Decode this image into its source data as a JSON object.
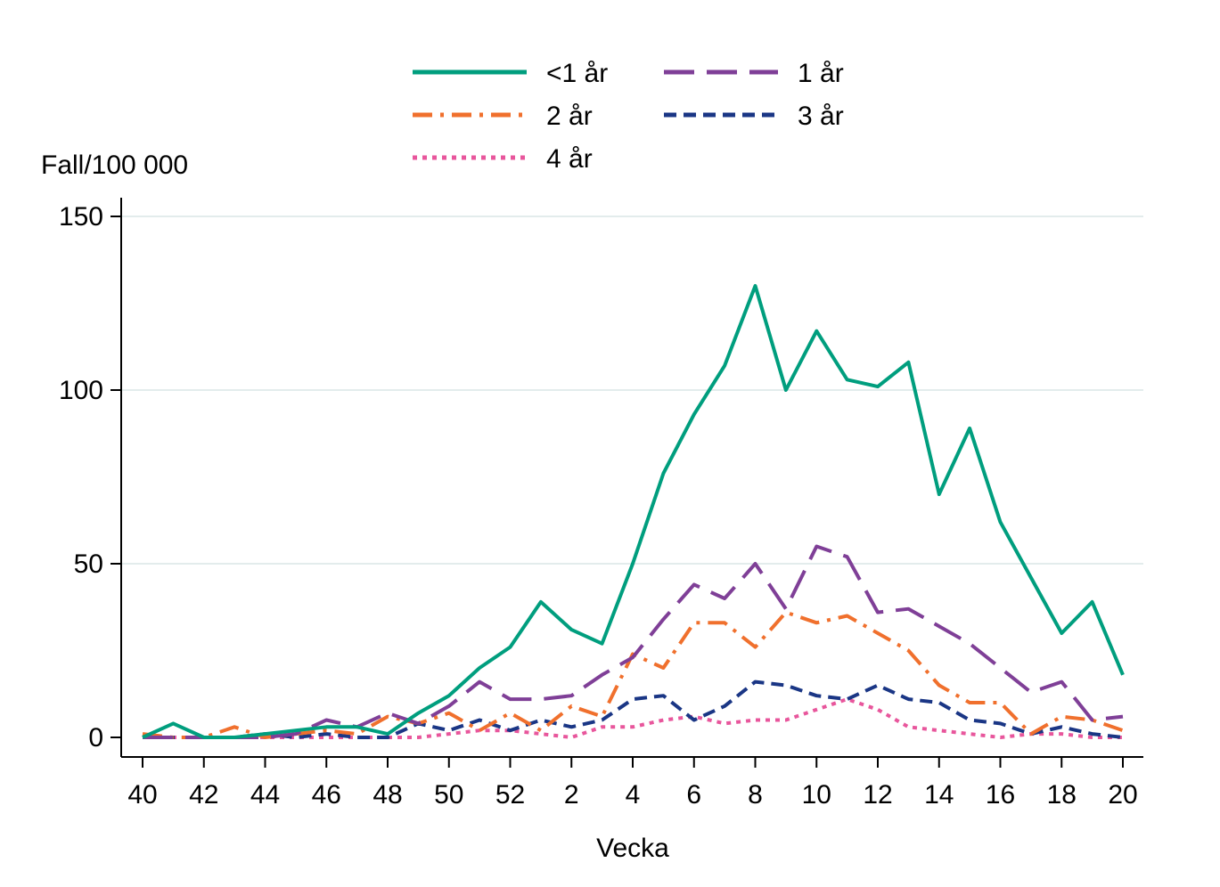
{
  "chart_data": {
    "type": "line",
    "title": "",
    "xlabel": "Vecka",
    "ylabel": "Fall/100 000",
    "ylim": [
      0,
      150
    ],
    "yticks": [
      0,
      50,
      100,
      150
    ],
    "grid": true,
    "legend_position": "top-center",
    "x": [
      40,
      41,
      42,
      43,
      44,
      45,
      46,
      47,
      48,
      49,
      50,
      51,
      52,
      1,
      2,
      3,
      4,
      5,
      6,
      7,
      8,
      9,
      10,
      11,
      12,
      13,
      14,
      15,
      16,
      17,
      18,
      19,
      20
    ],
    "xtick_labels": [
      "40",
      "42",
      "44",
      "46",
      "48",
      "50",
      "52",
      "2",
      "4",
      "6",
      "8",
      "10",
      "12",
      "14",
      "16",
      "18",
      "20"
    ],
    "series": [
      {
        "name": "<1 år",
        "color": "#009e7e",
        "dash": "solid",
        "values": [
          0,
          4,
          0,
          0,
          1,
          2,
          3,
          3,
          1,
          7,
          12,
          20,
          26,
          39,
          31,
          27,
          50,
          76,
          93,
          107,
          130,
          100,
          117,
          103,
          101,
          108,
          70,
          89,
          62,
          46,
          30,
          39,
          18
        ]
      },
      {
        "name": "1 år",
        "color": "#7f3f97",
        "dash": "longdash",
        "values": [
          0,
          0,
          0,
          0,
          0,
          1,
          5,
          3,
          7,
          4,
          9,
          16,
          11,
          11,
          12,
          18,
          23,
          34,
          44,
          40,
          50,
          37,
          55,
          52,
          36,
          37,
          32,
          27,
          20,
          13,
          16,
          5,
          6
        ]
      },
      {
        "name": "2 år",
        "color": "#f0702d",
        "dash": "dashdot",
        "values": [
          1,
          0,
          0,
          3,
          0,
          1,
          2,
          1,
          6,
          4,
          7,
          2,
          7,
          2,
          9,
          6,
          24,
          20,
          33,
          33,
          26,
          36,
          33,
          35,
          30,
          25,
          15,
          10,
          10,
          1,
          6,
          5,
          2
        ]
      },
      {
        "name": "3 år",
        "color": "#1a3685",
        "dash": "dash",
        "values": [
          0,
          0,
          0,
          0,
          1,
          0,
          1,
          0,
          0,
          4,
          2,
          5,
          2,
          5,
          3,
          5,
          11,
          12,
          5,
          9,
          16,
          15,
          12,
          11,
          15,
          11,
          10,
          5,
          4,
          1,
          3,
          1,
          0
        ]
      },
      {
        "name": "4 år",
        "color": "#e8569c",
        "dash": "dot",
        "values": [
          0,
          0,
          0,
          0,
          0,
          0,
          0,
          0,
          0,
          0,
          1,
          2,
          2,
          1,
          0,
          3,
          3,
          5,
          6,
          4,
          5,
          5,
          8,
          11,
          8,
          3,
          2,
          1,
          0,
          1,
          1,
          0,
          0
        ]
      }
    ]
  }
}
